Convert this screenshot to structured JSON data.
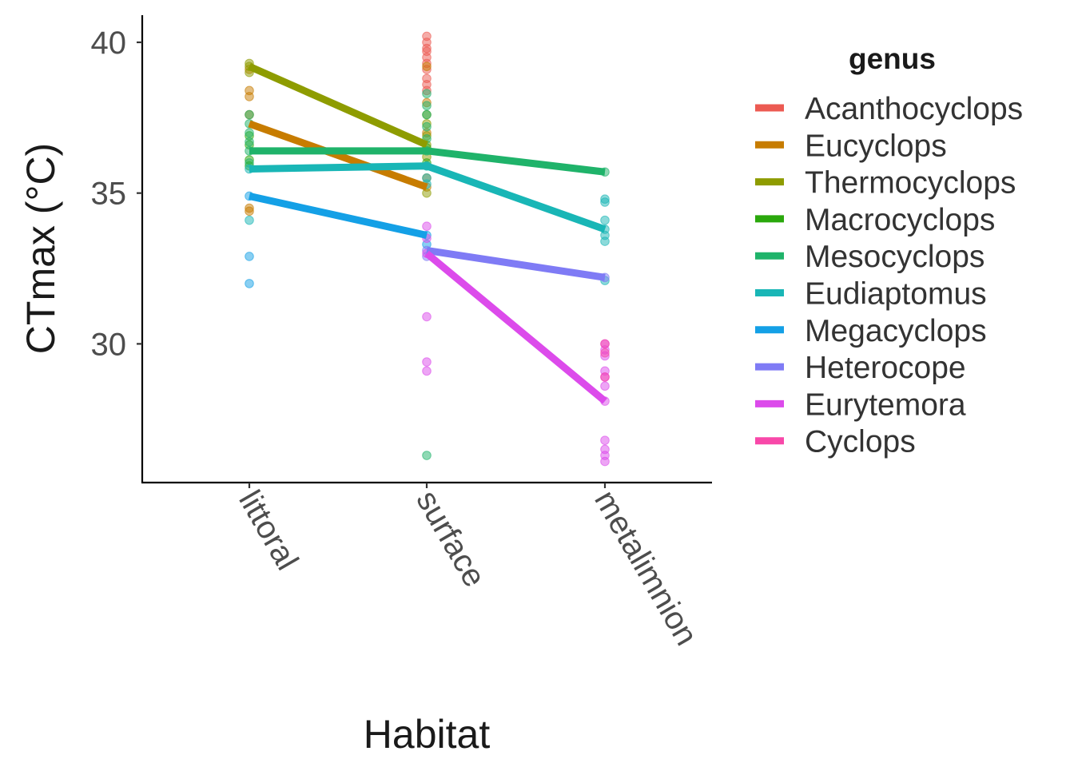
{
  "chart_data": {
    "type": "line",
    "title": "",
    "xlabel": "Habitat",
    "ylabel": "CTmax (°C)",
    "categories": [
      "littoral",
      "surface",
      "metalimnion"
    ],
    "ylim": [
      25.4,
      40.9
    ],
    "yticks": [
      30,
      35,
      40
    ],
    "grid": false,
    "legend": {
      "title": "genus",
      "placement": "right"
    },
    "series": [
      {
        "name": "Acanthocyclops",
        "color": "#F8766D",
        "values": [
          null,
          null,
          null
        ],
        "points": [
          [
            "surface",
            40.2
          ],
          [
            "surface",
            40.0
          ],
          [
            "surface",
            39.8
          ],
          [
            "surface",
            39.7
          ],
          [
            "surface",
            39.5
          ],
          [
            "surface",
            39.3
          ],
          [
            "surface",
            39.1
          ],
          [
            "surface",
            38.8
          ],
          [
            "surface",
            38.6
          ],
          [
            "surface",
            38.4
          ]
        ]
      },
      {
        "name": "Eucyclops",
        "color": "#D39200",
        "values": [
          37.3,
          35.2,
          null
        ],
        "points": [
          [
            "littoral",
            39.1
          ],
          [
            "littoral",
            38.4
          ],
          [
            "littoral",
            38.2
          ],
          [
            "littoral",
            37.6
          ],
          [
            "littoral",
            34.5
          ],
          [
            "littoral",
            34.4
          ],
          [
            "surface",
            39.2
          ],
          [
            "surface",
            38.0
          ],
          [
            "surface",
            37.0
          ],
          [
            "surface",
            35.5
          ],
          [
            "surface",
            35.2
          ]
        ]
      },
      {
        "name": "Thermocyclops",
        "color": "#93AA00",
        "values": [
          39.2,
          36.6,
          null
        ],
        "points": [
          [
            "littoral",
            39.3
          ],
          [
            "littoral",
            39.2
          ],
          [
            "littoral",
            39.0
          ],
          [
            "surface",
            37.6
          ],
          [
            "surface",
            37.3
          ],
          [
            "surface",
            36.9
          ],
          [
            "surface",
            36.6
          ],
          [
            "surface",
            36.2
          ],
          [
            "surface",
            35.0
          ]
        ]
      },
      {
        "name": "Macrocyclops",
        "color": "#00BA38",
        "values": [
          null,
          null,
          null
        ],
        "points": [
          [
            "littoral",
            36.9
          ],
          [
            "littoral",
            36.6
          ],
          [
            "littoral",
            36.1
          ],
          [
            "littoral",
            35.9
          ],
          [
            "surface",
            36.5
          ],
          [
            "surface",
            36.0
          ]
        ]
      },
      {
        "name": "Mesocyclops",
        "color": "#00C19F",
        "values": [
          36.4,
          36.4,
          35.7
        ],
        "points": [
          [
            "littoral",
            37.6
          ],
          [
            "littoral",
            37.3
          ],
          [
            "littoral",
            37.0
          ],
          [
            "littoral",
            36.7
          ],
          [
            "littoral",
            36.4
          ],
          [
            "littoral",
            36.0
          ],
          [
            "surface",
            38.3
          ],
          [
            "surface",
            37.9
          ],
          [
            "surface",
            37.6
          ],
          [
            "surface",
            37.2
          ],
          [
            "surface",
            36.8
          ],
          [
            "surface",
            36.4
          ],
          [
            "surface",
            35.9
          ],
          [
            "surface",
            26.3
          ],
          [
            "metalimnion",
            35.7
          ]
        ]
      },
      {
        "name": "Eudiaptomus",
        "color": "#00B9E3",
        "values": [
          35.8,
          35.9,
          33.8
        ],
        "points": [
          [
            "littoral",
            35.8
          ],
          [
            "littoral",
            34.1
          ],
          [
            "surface",
            35.9
          ],
          [
            "surface",
            35.5
          ],
          [
            "surface",
            35.3
          ],
          [
            "metalimnion",
            34.8
          ],
          [
            "metalimnion",
            34.7
          ],
          [
            "metalimnion",
            34.1
          ],
          [
            "metalimnion",
            33.8
          ],
          [
            "metalimnion",
            33.6
          ],
          [
            "metalimnion",
            33.4
          ],
          [
            "metalimnion",
            32.1
          ]
        ]
      },
      {
        "name": "Megacyclops",
        "color": "#619CFF",
        "values": [
          34.9,
          33.6,
          null
        ],
        "points": [
          [
            "littoral",
            34.9
          ],
          [
            "littoral",
            32.9
          ],
          [
            "littoral",
            32.0
          ],
          [
            "surface",
            33.6
          ],
          [
            "surface",
            33.3
          ]
        ]
      },
      {
        "name": "Heterocope",
        "color": "#DB72FB",
        "values": [
          null,
          33.1,
          32.2
        ],
        "points": [
          [
            "surface",
            33.1
          ],
          [
            "surface",
            32.9
          ],
          [
            "metalimnion",
            32.2
          ]
        ]
      },
      {
        "name": "Eurytemora",
        "color": "#FF61C3",
        "values": [
          null,
          33.0,
          28.1
        ],
        "points": [
          [
            "surface",
            33.9
          ],
          [
            "surface",
            33.5
          ],
          [
            "surface",
            33.0
          ],
          [
            "surface",
            30.9
          ],
          [
            "surface",
            29.4
          ],
          [
            "surface",
            29.1
          ],
          [
            "metalimnion",
            30.0
          ],
          [
            "metalimnion",
            29.8
          ],
          [
            "metalimnion",
            29.6
          ],
          [
            "metalimnion",
            29.1
          ],
          [
            "metalimnion",
            28.9
          ],
          [
            "metalimnion",
            28.6
          ],
          [
            "metalimnion",
            28.1
          ],
          [
            "metalimnion",
            26.8
          ],
          [
            "metalimnion",
            26.5
          ],
          [
            "metalimnion",
            26.3
          ],
          [
            "metalimnion",
            26.1
          ]
        ]
      },
      {
        "name": "Cyclops",
        "color": "#FF4FA9",
        "values": [
          null,
          null,
          null
        ],
        "points": [
          [
            "metalimnion",
            30.0
          ],
          [
            "metalimnion",
            29.7
          ],
          [
            "metalimnion",
            28.9
          ]
        ]
      }
    ]
  },
  "series_display_colors": {
    "Acanthocyclops": "#EC5A52",
    "Eucyclops": "#C77C00",
    "Thermocyclops": "#8E9C00",
    "Macrocyclops": "#2AA80C",
    "Mesocyclops": "#1FB36A",
    "Eudiaptomus": "#19B6B6",
    "Megacyclops": "#14A0E6",
    "Heterocope": "#7F7BF5",
    "Eurytemora": "#DC4BEB",
    "Cyclops": "#F848A9"
  }
}
